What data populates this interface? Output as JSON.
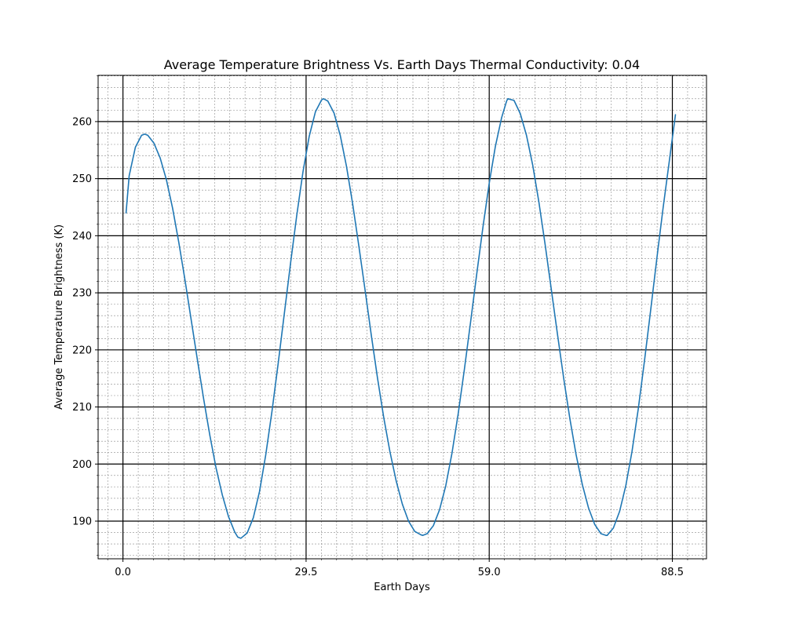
{
  "chart_data": {
    "type": "line",
    "title": "Average Temperature Brightness Vs. Earth Days Thermal Conductivity: 0.04",
    "xlabel": "Earth Days",
    "ylabel": "Average Temperature Brightness (K)",
    "xlim": [
      -4,
      94
    ],
    "ylim": [
      183.4,
      268.1
    ],
    "xticks": [
      0.0,
      29.5,
      59.0,
      88.5
    ],
    "xtick_labels": [
      "0.0",
      "29.5",
      "59.0",
      "88.5"
    ],
    "yticks": [
      190,
      200,
      210,
      220,
      230,
      240,
      250,
      260
    ],
    "ytick_labels": [
      "190",
      "200",
      "210",
      "220",
      "230",
      "240",
      "250",
      "260"
    ],
    "grid": true,
    "minor_grid": true,
    "series": [
      {
        "color": "#1f77b4",
        "x": [
          0.5,
          1.0,
          2.0,
          3.0,
          3.5,
          4.0,
          5.0,
          6.0,
          7.0,
          8.0,
          9.0,
          10.0,
          11.0,
          12.0,
          13.0,
          14.0,
          15.0,
          16.0,
          17.0,
          18.0,
          18.5,
          19.0,
          20.0,
          21.0,
          22.0,
          23.0,
          24.0,
          25.0,
          26.0,
          27.0,
          28.0,
          29.0,
          30.0,
          31.0,
          32.0,
          32.3,
          33.0,
          34.0,
          35.0,
          36.0,
          37.0,
          38.0,
          39.0,
          40.0,
          41.0,
          42.0,
          43.0,
          44.0,
          45.0,
          46.0,
          47.0,
          48.0,
          48.3,
          49.0,
          50.0,
          51.0,
          52.0,
          53.0,
          54.0,
          55.0,
          56.0,
          57.0,
          58.0,
          59.0,
          60.0,
          61.0,
          61.8,
          62.0,
          63.0,
          64.0,
          65.0,
          66.0,
          67.0,
          68.0,
          69.0,
          70.0,
          71.0,
          72.0,
          73.0,
          74.0,
          75.0,
          76.0,
          77.0,
          78.0,
          77.8,
          79.0,
          80.0,
          81.0,
          82.0,
          83.0,
          84.0,
          85.0,
          86.0,
          87.0,
          88.0,
          89.0
        ],
        "y": [
          244.0,
          250.5,
          255.5,
          257.6,
          257.8,
          257.6,
          256.2,
          253.6,
          249.8,
          244.8,
          238.8,
          232.2,
          225.2,
          218.2,
          211.4,
          205.0,
          199.3,
          194.6,
          190.8,
          188.1,
          187.2,
          187.0,
          187.9,
          190.6,
          195.2,
          201.6,
          209.2,
          217.6,
          226.4,
          235.2,
          243.6,
          251.2,
          257.4,
          261.7,
          263.8,
          264.0,
          263.6,
          261.5,
          257.6,
          252.2,
          245.6,
          238.2,
          230.5,
          222.6,
          215.1,
          208.2,
          202.2,
          197.1,
          193.0,
          190.0,
          188.2,
          187.6,
          187.5,
          187.8,
          189.2,
          192.0,
          196.2,
          201.9,
          208.8,
          216.6,
          224.9,
          233.4,
          241.6,
          249.2,
          255.7,
          260.7,
          263.6,
          264.0,
          263.7,
          261.4,
          257.6,
          252.4,
          245.9,
          238.5,
          230.6,
          222.7,
          215.0,
          207.9,
          201.6,
          196.4,
          192.3,
          189.4,
          187.8,
          187.5,
          187.5,
          188.8,
          191.7,
          196.2,
          202.2,
          209.6,
          218.0,
          226.9,
          236.0,
          244.8,
          253.0,
          261.2
        ]
      }
    ]
  }
}
